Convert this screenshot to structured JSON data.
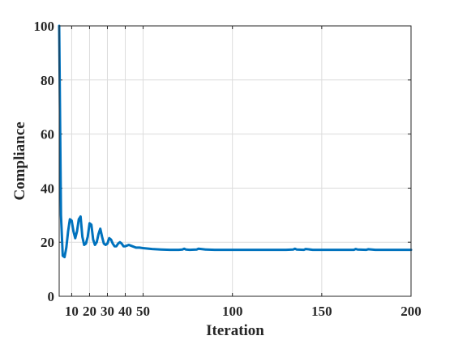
{
  "chart_data": {
    "type": "line",
    "title": "",
    "xlabel": "Iteration",
    "ylabel": "Compliance",
    "xlim": [
      3,
      200
    ],
    "ylim": [
      0,
      100
    ],
    "grid": true,
    "x_ticks": [
      10,
      20,
      30,
      40,
      50,
      100,
      150,
      200
    ],
    "y_ticks": [
      0,
      20,
      40,
      60,
      80,
      100
    ],
    "line_color": "#0072BD",
    "series": [
      {
        "x": [
          3,
          4,
          5,
          6,
          7,
          8,
          9,
          10,
          11,
          12,
          13,
          14,
          15,
          16,
          17,
          18,
          19,
          20,
          21,
          22,
          23,
          24,
          25,
          26,
          27,
          28,
          29,
          30,
          31,
          32,
          33,
          34,
          35,
          36,
          37,
          38,
          39,
          40,
          42,
          44,
          46,
          48,
          50,
          55,
          60,
          65,
          70,
          72,
          73,
          74,
          76,
          80,
          81,
          85,
          90,
          100,
          110,
          120,
          130,
          134,
          135,
          136,
          140,
          141,
          145,
          150,
          160,
          168,
          169,
          170,
          175,
          176,
          180,
          190,
          200
        ],
        "y": [
          100,
          30,
          15,
          14.5,
          18,
          24,
          28.5,
          28,
          24,
          21.5,
          24,
          28.5,
          29.5,
          22,
          19,
          19.5,
          22,
          27,
          26.5,
          21,
          19,
          20,
          23,
          25,
          22,
          19.5,
          19,
          19.5,
          21.5,
          21,
          19.5,
          18.5,
          18.5,
          19.5,
          20,
          19.5,
          18.5,
          18.5,
          19,
          18.5,
          18,
          18,
          17.8,
          17.5,
          17.3,
          17.2,
          17.2,
          17.3,
          17.6,
          17.3,
          17.2,
          17.3,
          17.6,
          17.3,
          17.2,
          17.2,
          17.2,
          17.2,
          17.2,
          17.3,
          17.6,
          17.3,
          17.2,
          17.5,
          17.2,
          17.2,
          17.2,
          17.2,
          17.5,
          17.3,
          17.2,
          17.4,
          17.2,
          17.2,
          17.2
        ]
      }
    ]
  }
}
